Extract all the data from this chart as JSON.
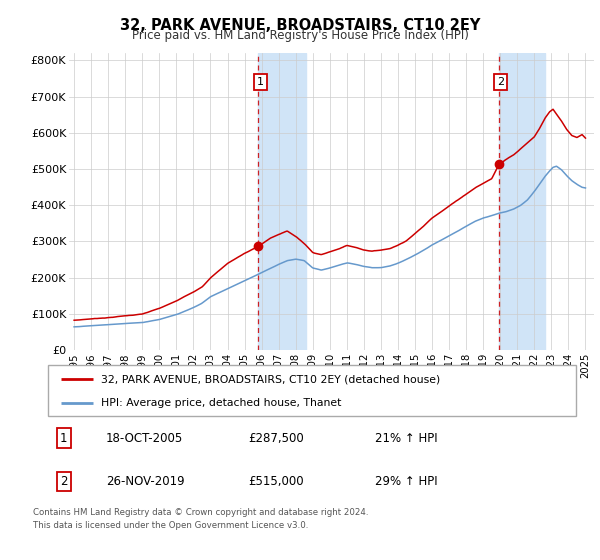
{
  "title": "32, PARK AVENUE, BROADSTAIRS, CT10 2EY",
  "subtitle": "Price paid vs. HM Land Registry's House Price Index (HPI)",
  "xlim": [
    1994.7,
    2025.5
  ],
  "ylim": [
    0,
    820000
  ],
  "yticks": [
    0,
    100000,
    200000,
    300000,
    400000,
    500000,
    600000,
    700000,
    800000
  ],
  "ytick_labels": [
    "£0",
    "£100K",
    "£200K",
    "£300K",
    "£400K",
    "£500K",
    "£600K",
    "£700K",
    "£800K"
  ],
  "xticks": [
    1995,
    1996,
    1997,
    1998,
    1999,
    2000,
    2001,
    2002,
    2003,
    2004,
    2005,
    2006,
    2007,
    2008,
    2009,
    2010,
    2011,
    2012,
    2013,
    2014,
    2015,
    2016,
    2017,
    2018,
    2019,
    2020,
    2021,
    2022,
    2023,
    2024,
    2025
  ],
  "sale1_x": 2005.8,
  "sale1_y": 287500,
  "sale2_x": 2019.9,
  "sale2_y": 515000,
  "sale1_date": "18-OCT-2005",
  "sale1_price": "£287,500",
  "sale1_hpi": "21% ↑ HPI",
  "sale2_date": "26-NOV-2019",
  "sale2_price": "£515,000",
  "sale2_hpi": "29% ↑ HPI",
  "legend_line1": "32, PARK AVENUE, BROADSTAIRS, CT10 2EY (detached house)",
  "legend_line2": "HPI: Average price, detached house, Thanet",
  "footer1": "Contains HM Land Registry data © Crown copyright and database right 2024.",
  "footer2": "This data is licensed under the Open Government Licence v3.0.",
  "red_color": "#cc0000",
  "blue_color": "#6699cc",
  "shade_color": "#d0e4f7",
  "red_controls": [
    [
      1995.0,
      82000
    ],
    [
      1996.0,
      86000
    ],
    [
      1997.0,
      90000
    ],
    [
      1998.0,
      95000
    ],
    [
      1999.0,
      100000
    ],
    [
      2000.0,
      115000
    ],
    [
      2001.0,
      135000
    ],
    [
      2002.0,
      160000
    ],
    [
      2002.5,
      175000
    ],
    [
      2003.0,
      200000
    ],
    [
      2004.0,
      240000
    ],
    [
      2005.0,
      268000
    ],
    [
      2005.8,
      287500
    ],
    [
      2006.5,
      310000
    ],
    [
      2007.5,
      330000
    ],
    [
      2008.0,
      315000
    ],
    [
      2008.5,
      295000
    ],
    [
      2009.0,
      270000
    ],
    [
      2009.5,
      265000
    ],
    [
      2010.0,
      272000
    ],
    [
      2010.5,
      280000
    ],
    [
      2011.0,
      290000
    ],
    [
      2011.5,
      285000
    ],
    [
      2012.0,
      278000
    ],
    [
      2012.5,
      275000
    ],
    [
      2013.0,
      278000
    ],
    [
      2013.5,
      282000
    ],
    [
      2014.0,
      292000
    ],
    [
      2014.5,
      305000
    ],
    [
      2015.0,
      325000
    ],
    [
      2015.5,
      345000
    ],
    [
      2016.0,
      368000
    ],
    [
      2016.5,
      385000
    ],
    [
      2017.0,
      402000
    ],
    [
      2017.5,
      418000
    ],
    [
      2018.0,
      435000
    ],
    [
      2018.5,
      452000
    ],
    [
      2019.0,
      465000
    ],
    [
      2019.5,
      478000
    ],
    [
      2019.9,
      515000
    ],
    [
      2020.3,
      530000
    ],
    [
      2020.8,
      545000
    ],
    [
      2021.2,
      562000
    ],
    [
      2021.6,
      578000
    ],
    [
      2022.0,
      595000
    ],
    [
      2022.3,
      618000
    ],
    [
      2022.6,
      645000
    ],
    [
      2022.9,
      665000
    ],
    [
      2023.1,
      672000
    ],
    [
      2023.3,
      658000
    ],
    [
      2023.6,
      638000
    ],
    [
      2023.9,
      615000
    ],
    [
      2024.2,
      598000
    ],
    [
      2024.5,
      592000
    ],
    [
      2024.8,
      600000
    ],
    [
      2025.0,
      590000
    ]
  ],
  "blue_controls": [
    [
      1995.0,
      64000
    ],
    [
      1996.0,
      67000
    ],
    [
      1997.0,
      70000
    ],
    [
      1998.0,
      73000
    ],
    [
      1999.0,
      76000
    ],
    [
      2000.0,
      85000
    ],
    [
      2001.0,
      98000
    ],
    [
      2002.0,
      118000
    ],
    [
      2002.5,
      130000
    ],
    [
      2003.0,
      148000
    ],
    [
      2004.0,
      170000
    ],
    [
      2005.0,
      192000
    ],
    [
      2006.0,
      215000
    ],
    [
      2007.0,
      238000
    ],
    [
      2007.5,
      248000
    ],
    [
      2008.0,
      252000
    ],
    [
      2008.5,
      248000
    ],
    [
      2009.0,
      228000
    ],
    [
      2009.5,
      222000
    ],
    [
      2010.0,
      228000
    ],
    [
      2010.5,
      235000
    ],
    [
      2011.0,
      242000
    ],
    [
      2011.5,
      238000
    ],
    [
      2012.0,
      232000
    ],
    [
      2012.5,
      228000
    ],
    [
      2013.0,
      228000
    ],
    [
      2013.5,
      232000
    ],
    [
      2014.0,
      240000
    ],
    [
      2014.5,
      250000
    ],
    [
      2015.0,
      262000
    ],
    [
      2015.5,
      275000
    ],
    [
      2016.0,
      290000
    ],
    [
      2016.5,
      302000
    ],
    [
      2017.0,
      315000
    ],
    [
      2017.5,
      328000
    ],
    [
      2018.0,
      342000
    ],
    [
      2018.5,
      355000
    ],
    [
      2019.0,
      365000
    ],
    [
      2019.5,
      372000
    ],
    [
      2019.9,
      378000
    ],
    [
      2020.3,
      382000
    ],
    [
      2020.8,
      390000
    ],
    [
      2021.2,
      400000
    ],
    [
      2021.6,
      415000
    ],
    [
      2022.0,
      438000
    ],
    [
      2022.3,
      458000
    ],
    [
      2022.6,
      478000
    ],
    [
      2022.9,
      495000
    ],
    [
      2023.1,
      505000
    ],
    [
      2023.3,
      508000
    ],
    [
      2023.6,
      498000
    ],
    [
      2023.9,
      482000
    ],
    [
      2024.2,
      468000
    ],
    [
      2024.5,
      458000
    ],
    [
      2024.8,
      450000
    ],
    [
      2025.0,
      448000
    ]
  ]
}
